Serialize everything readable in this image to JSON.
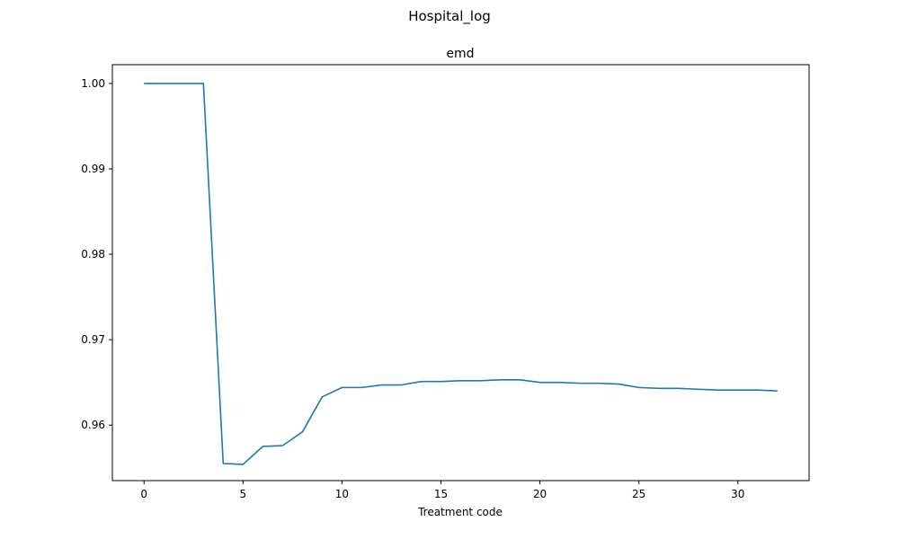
{
  "figure": {
    "suptitle": "Hospital_log"
  },
  "chart_data": {
    "type": "line",
    "title": "emd",
    "xlabel": "Treatment code",
    "ylabel": "",
    "xlim": [
      -1.6,
      33.6
    ],
    "ylim": [
      0.9535,
      1.0022
    ],
    "x_ticks": [
      0,
      5,
      10,
      15,
      20,
      25,
      30
    ],
    "x_tick_labels": [
      "0",
      "5",
      "10",
      "15",
      "20",
      "25",
      "30"
    ],
    "y_ticks": [
      0.96,
      0.97,
      0.98,
      0.99,
      1.0
    ],
    "y_tick_labels": [
      "0.96",
      "0.97",
      "0.98",
      "0.99",
      "1.00"
    ],
    "grid": false,
    "series": [
      {
        "color": "#1f77b4",
        "x": [
          0,
          1,
          2,
          3,
          4,
          5,
          6,
          7,
          8,
          9,
          10,
          11,
          12,
          13,
          14,
          15,
          16,
          17,
          18,
          19,
          20,
          21,
          22,
          23,
          24,
          25,
          26,
          27,
          28,
          29,
          30,
          31,
          32
        ],
        "y": [
          1.0,
          1.0,
          1.0,
          1.0,
          0.9555,
          0.9554,
          0.9575,
          0.9576,
          0.9592,
          0.9633,
          0.9644,
          0.9644,
          0.9647,
          0.9647,
          0.9651,
          0.9651,
          0.9652,
          0.9652,
          0.9653,
          0.9653,
          0.965,
          0.965,
          0.9649,
          0.9649,
          0.9648,
          0.9644,
          0.9643,
          0.9643,
          0.9642,
          0.9641,
          0.9641,
          0.9641,
          0.964
        ]
      }
    ]
  }
}
